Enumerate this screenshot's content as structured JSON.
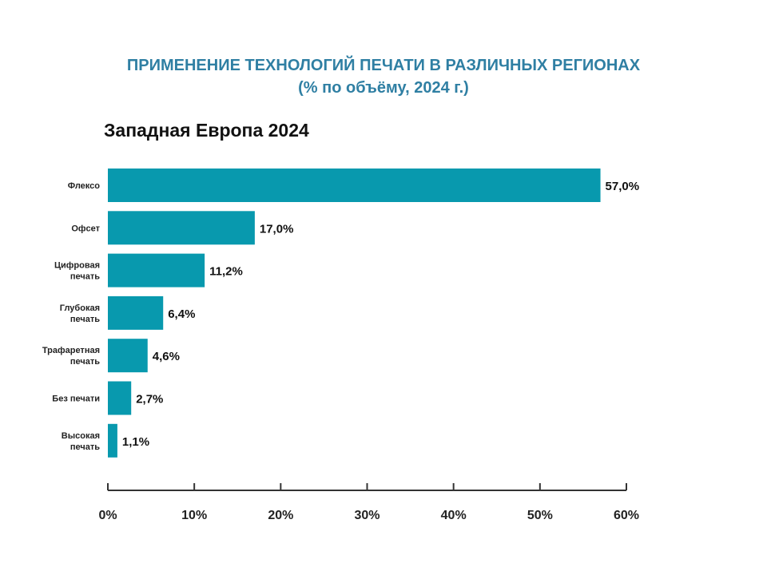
{
  "title": "ПРИМЕНЕНИЕ ТЕХНОЛОГИЙ ПЕЧАТИ В РАЗЛИЧНЫХ РЕГИОНАХ",
  "subtitle": "(% по объёму, 2024 г.)",
  "region_title": "Западная Европа 2024",
  "colors": {
    "bar": "#0899ae",
    "title": "#2f7fa3",
    "axis": "#333333"
  },
  "chart_data": {
    "type": "bar",
    "orientation": "horizontal",
    "title": "ПРИМЕНЕНИЕ ТЕХНОЛОГИЙ ПЕЧАТИ В РАЗЛИЧНЫХ РЕГИОНАХ",
    "subtitle": "(% по объёму, 2024 г.)",
    "categories": [
      [
        "Флексо"
      ],
      [
        "Офсет"
      ],
      [
        "Цифровая",
        "печать"
      ],
      [
        "Глубокая",
        "печать"
      ],
      [
        "Трафаретная",
        "печать"
      ],
      [
        "Без печати"
      ],
      [
        "Высокая",
        "печать"
      ]
    ],
    "values": [
      57.0,
      17.0,
      11.2,
      6.4,
      4.6,
      2.7,
      1.1
    ],
    "data_labels": [
      "57,0%",
      "17,0%",
      "11,2%",
      "6,4%",
      "4,6%",
      "2,7%",
      "1,1%"
    ],
    "xlim": [
      0,
      60
    ],
    "xticks": [
      0,
      10,
      20,
      30,
      40,
      50,
      60
    ],
    "xtick_labels": [
      "0%",
      "10%",
      "20%",
      "30%",
      "40%",
      "50%",
      "60%"
    ],
    "grid": false,
    "legend": "none"
  }
}
